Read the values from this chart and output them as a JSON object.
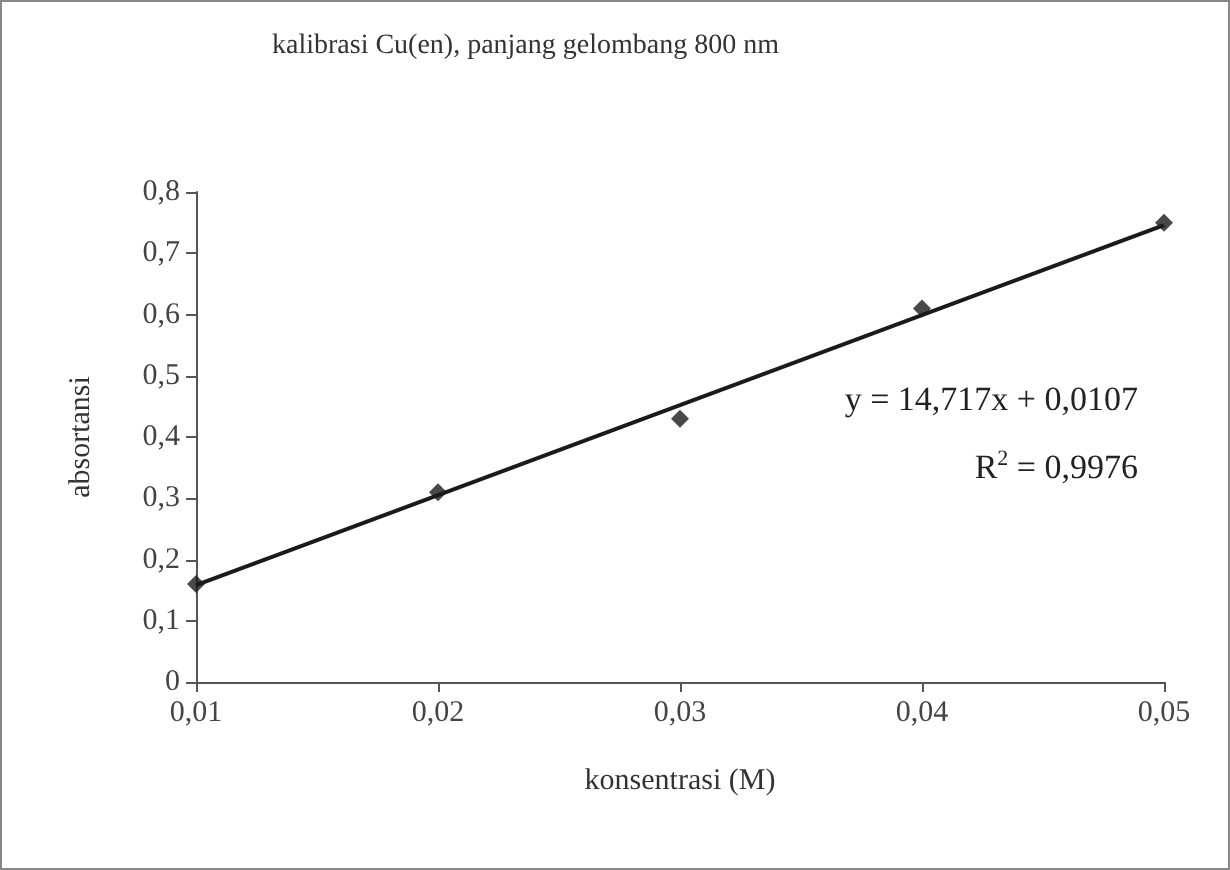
{
  "chart_data": {
    "type": "scatter",
    "title": "kalibrasi Cu(en), panjang gelombang 800 nm",
    "xlabel": "konsentrasi (M)",
    "ylabel": "absortansi",
    "x": [
      0.01,
      0.02,
      0.03,
      0.04,
      0.05
    ],
    "series": [
      {
        "color": "#1a1a1a",
        "values": [
          0.16,
          0.31,
          0.43,
          0.61,
          0.75
        ],
        "marker": "diamond"
      },
      {
        "type": "line",
        "color": "#1a1a1a",
        "x": [
          0.01,
          0.05
        ],
        "values": [
          0.158,
          0.746
        ],
        "marker": "none",
        "line_style": "solid"
      }
    ],
    "xlim": [
      0.01,
      0.05
    ],
    "xticks": [
      {
        "value": 0.01,
        "label": "0,01"
      },
      {
        "value": 0.02,
        "label": "0,02"
      },
      {
        "value": 0.03,
        "label": "0,03"
      },
      {
        "value": 0.04,
        "label": "0,04"
      },
      {
        "value": 0.05,
        "label": "0,05"
      }
    ],
    "ylim": [
      0,
      0.8
    ],
    "yticks": [
      0,
      {
        "value": 0.1,
        "label": "0,1"
      },
      {
        "value": 0.2,
        "label": "0,2"
      },
      {
        "value": 0.3,
        "label": "0,3"
      },
      {
        "value": 0.4,
        "label": "0,4"
      },
      {
        "value": 0.5,
        "label": "0,5"
      },
      {
        "value": 0.6,
        "label": "0,6"
      },
      {
        "value": 0.7,
        "label": "0,7"
      },
      {
        "value": 0.8,
        "label": "0,8"
      }
    ],
    "annotations": [
      "y = 14,717x + 0,0107",
      "R$^{2}$ = 0,9976"
    ],
    "grid": false
  }
}
